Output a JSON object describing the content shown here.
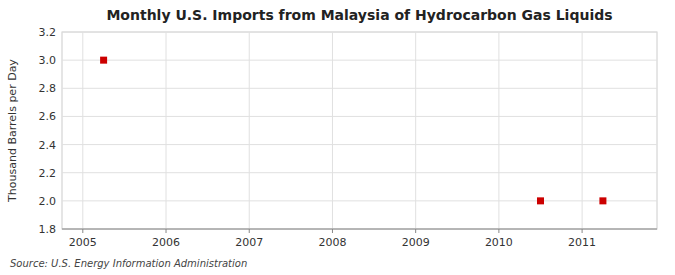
{
  "chart_data": {
    "type": "scatter",
    "title": "Monthly U.S. Imports from Malaysia of Hydrocarbon Gas Liquids",
    "ylabel": "Thousand Barrels per Day",
    "annotations": [
      "Source: U.S. Energy Information Administration"
    ],
    "x": [
      2005.25,
      2010.5,
      2011.25
    ],
    "values": [
      3.0,
      2.0,
      2.0
    ],
    "color": "#CC0000",
    "marker": "square",
    "xlim": [
      2004.75,
      2011.9
    ],
    "ylim": [
      1.8,
      3.2
    ],
    "xticks": [
      2005,
      2006,
      2007,
      2008,
      2009,
      2010,
      2011
    ],
    "yticks": [
      1.8,
      {
        "value": 2.0,
        "label": "2.0"
      },
      2.2,
      2.4,
      2.6,
      2.8,
      {
        "value": 3.0,
        "label": "3.0"
      },
      3.2
    ],
    "grid": true
  }
}
